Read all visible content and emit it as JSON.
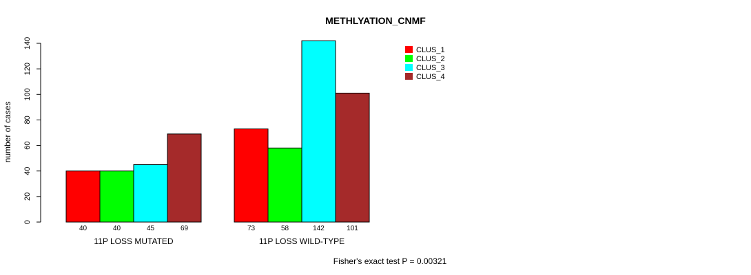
{
  "chart_data": {
    "type": "bar",
    "title": "METHLYATION_CNMF",
    "ylabel": "number of cases",
    "xlabel": "",
    "ylim": [
      0,
      140
    ],
    "yticks": [
      0,
      20,
      40,
      60,
      80,
      100,
      120,
      140
    ],
    "categories": [
      "11P LOSS MUTATED",
      "11P LOSS WILD-TYPE"
    ],
    "series": [
      {
        "name": "CLUS_1",
        "color": "#ff0000",
        "values": [
          40,
          73
        ]
      },
      {
        "name": "CLUS_2",
        "color": "#00ff00",
        "values": [
          40,
          58
        ]
      },
      {
        "name": "CLUS_3",
        "color": "#00ffff",
        "values": [
          45,
          142
        ]
      },
      {
        "name": "CLUS_4",
        "color": "#a52a2a",
        "values": [
          69,
          101
        ]
      }
    ],
    "value_labels": [
      [
        "40",
        "40",
        "45",
        "69"
      ],
      [
        "73",
        "58",
        "142",
        "101"
      ]
    ],
    "legend_position": "top-right",
    "grid": false,
    "footnote": "Fisher's exact test P = 0.00321"
  }
}
